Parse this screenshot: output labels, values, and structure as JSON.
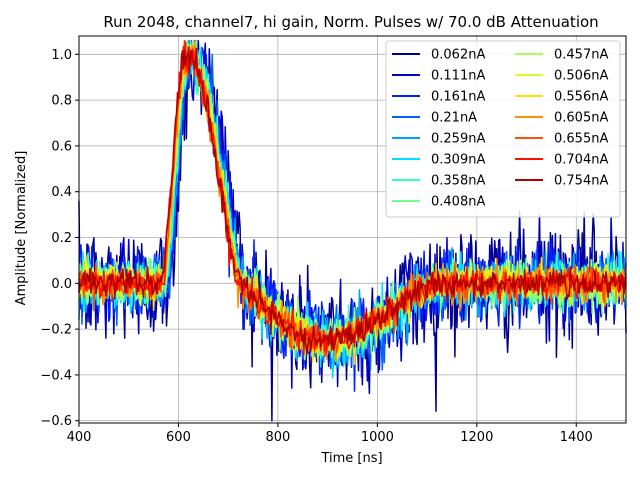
{
  "chart_data": {
    "type": "line",
    "title": "Run 2048, channel7, hi gain, Norm. Pulses w/ 70.0 dB Attenuation",
    "xlabel": "Time [ns]",
    "ylabel": "Amplitude [Normalized]",
    "xlim": [
      400,
      1500
    ],
    "ylim": [
      -0.61,
      1.08
    ],
    "xticks": [
      400,
      600,
      800,
      1000,
      1200,
      1400
    ],
    "yticks": [
      -0.6,
      -0.4,
      -0.2,
      0.0,
      0.2,
      0.4,
      0.6,
      0.8,
      1.0
    ],
    "xtick_labels": [
      "400",
      "600",
      "800",
      "1000",
      "1200",
      "1400"
    ],
    "ytick_labels": [
      "−0.6",
      "−0.4",
      "−0.2",
      "0.0",
      "0.2",
      "0.4",
      "0.6",
      "0.8",
      "1.0"
    ],
    "grid": true,
    "legend_position": "top-right",
    "legend_columns": 2,
    "pulse_shape": {
      "baseline": 0.0,
      "rise_start_ns": 565,
      "peak_ns": 615,
      "peak_value": 1.0,
      "zero_crossing_ns": 720,
      "undershoot_ns": 900,
      "undershoot_value": -0.25,
      "recovery_ns": 1100
    },
    "series": [
      {
        "name": "0.062nA",
        "current_nA": 0.062,
        "color": "#00008f",
        "noise_std": 0.13
      },
      {
        "name": "0.111nA",
        "current_nA": 0.111,
        "color": "#0000c8",
        "noise_std": 0.095
      },
      {
        "name": "0.161nA",
        "current_nA": 0.161,
        "color": "#0020ff",
        "noise_std": 0.08
      },
      {
        "name": "0.21nA",
        "current_nA": 0.21,
        "color": "#0060ff",
        "noise_std": 0.07
      },
      {
        "name": "0.259nA",
        "current_nA": 0.259,
        "color": "#00a0ff",
        "noise_std": 0.06
      },
      {
        "name": "0.309nA",
        "current_nA": 0.309,
        "color": "#00e0ff",
        "noise_std": 0.055
      },
      {
        "name": "0.358nA",
        "current_nA": 0.358,
        "color": "#30ffd0",
        "noise_std": 0.05
      },
      {
        "name": "0.408nA",
        "current_nA": 0.408,
        "color": "#70ff8f",
        "noise_std": 0.046
      },
      {
        "name": "0.457nA",
        "current_nA": 0.457,
        "color": "#a0ff5f",
        "noise_std": 0.043
      },
      {
        "name": "0.506nA",
        "current_nA": 0.506,
        "color": "#d0ff30",
        "noise_std": 0.04
      },
      {
        "name": "0.556nA",
        "current_nA": 0.556,
        "color": "#ffe000",
        "noise_std": 0.038
      },
      {
        "name": "0.605nA",
        "current_nA": 0.605,
        "color": "#ff9000",
        "noise_std": 0.036
      },
      {
        "name": "0.655nA",
        "current_nA": 0.655,
        "color": "#ff5000",
        "noise_std": 0.034
      },
      {
        "name": "0.704nA",
        "current_nA": 0.704,
        "color": "#ff1000",
        "noise_std": 0.032
      },
      {
        "name": "0.754nA",
        "current_nA": 0.754,
        "color": "#b00000",
        "noise_std": 0.03
      }
    ]
  }
}
